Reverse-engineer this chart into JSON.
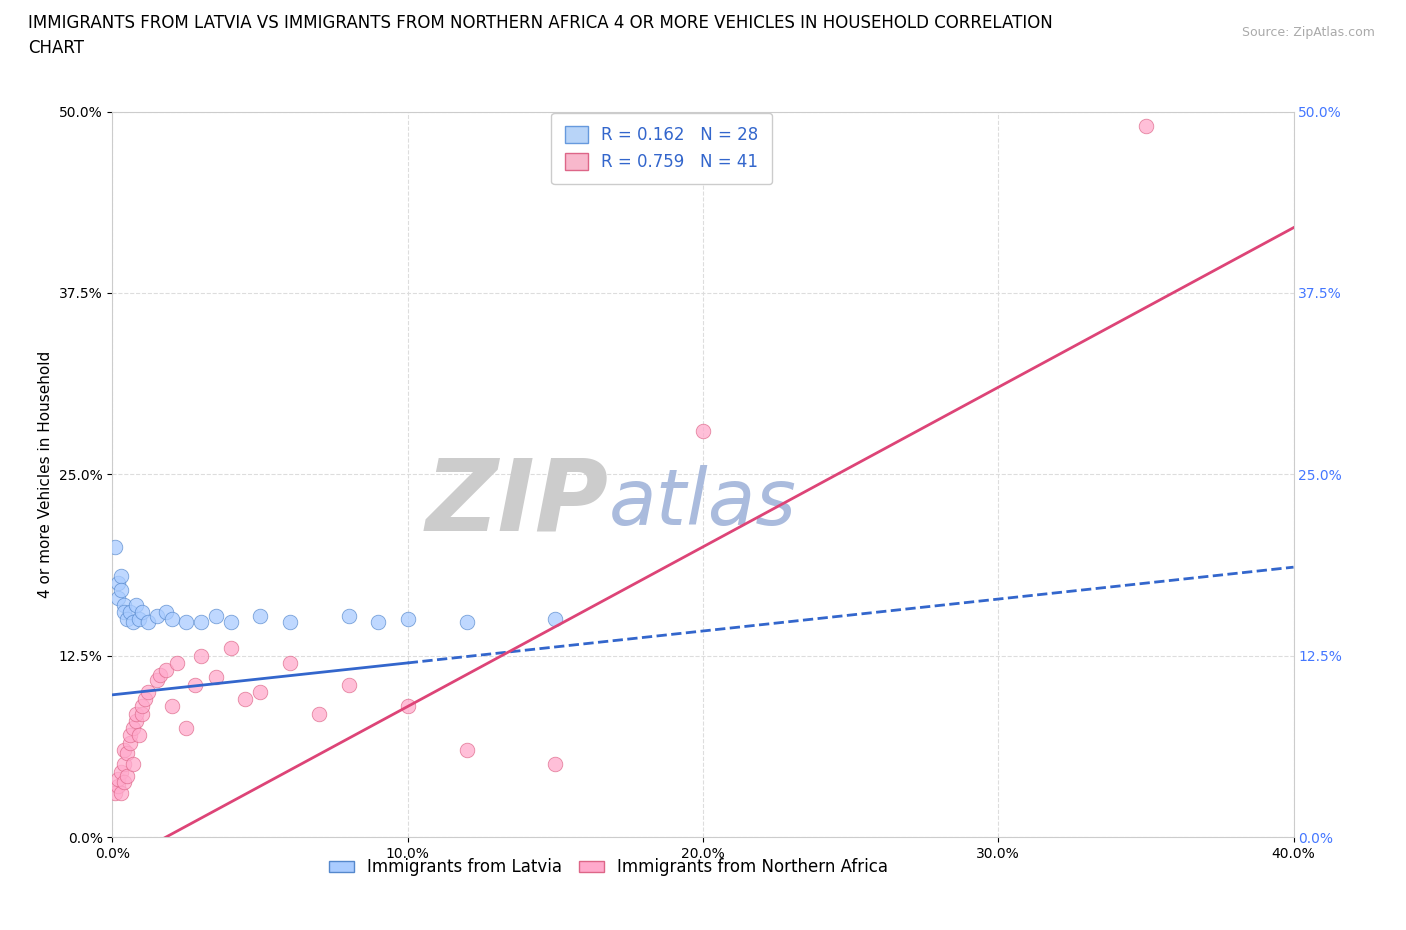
{
  "title_line1": "IMMIGRANTS FROM LATVIA VS IMMIGRANTS FROM NORTHERN AFRICA 4 OR MORE VEHICLES IN HOUSEHOLD CORRELATION",
  "title_line2": "CHART",
  "source": "Source: ZipAtlas.com",
  "ylabel": "4 or more Vehicles in Household",
  "xlim": [
    0.0,
    0.4
  ],
  "ylim": [
    0.0,
    0.5
  ],
  "xticks": [
    0.0,
    0.1,
    0.2,
    0.3,
    0.4
  ],
  "xtick_labels": [
    "0.0%",
    "10.0%",
    "20.0%",
    "30.0%",
    "40.0%"
  ],
  "yticks": [
    0.0,
    0.125,
    0.25,
    0.375,
    0.5
  ],
  "ytick_labels": [
    "0.0%",
    "12.5%",
    "25.0%",
    "37.5%",
    "50.0%"
  ],
  "legend_R_N": [
    {
      "R": "0.162",
      "N": "28",
      "face": "#b8d4f8",
      "edge": "#6699dd"
    },
    {
      "R": "0.759",
      "N": "41",
      "face": "#f8b8cc",
      "edge": "#dd6688"
    }
  ],
  "legend_labels": [
    "Immigrants from Latvia",
    "Immigrants from Northern Africa"
  ],
  "blue_x": [
    0.001,
    0.002,
    0.002,
    0.003,
    0.003,
    0.004,
    0.004,
    0.005,
    0.006,
    0.007,
    0.008,
    0.009,
    0.01,
    0.012,
    0.015,
    0.018,
    0.02,
    0.025,
    0.03,
    0.035,
    0.04,
    0.05,
    0.06,
    0.08,
    0.09,
    0.1,
    0.12,
    0.15
  ],
  "blue_y": [
    0.2,
    0.175,
    0.165,
    0.18,
    0.17,
    0.16,
    0.155,
    0.15,
    0.155,
    0.148,
    0.16,
    0.15,
    0.155,
    0.148,
    0.152,
    0.155,
    0.15,
    0.148,
    0.148,
    0.152,
    0.148,
    0.152,
    0.148,
    0.152,
    0.148,
    0.15,
    0.148,
    0.15
  ],
  "pink_x": [
    0.001,
    0.002,
    0.002,
    0.003,
    0.003,
    0.004,
    0.004,
    0.004,
    0.005,
    0.005,
    0.006,
    0.006,
    0.007,
    0.007,
    0.008,
    0.008,
    0.009,
    0.01,
    0.01,
    0.011,
    0.012,
    0.015,
    0.016,
    0.018,
    0.02,
    0.022,
    0.025,
    0.028,
    0.03,
    0.035,
    0.04,
    0.045,
    0.05,
    0.06,
    0.07,
    0.08,
    0.1,
    0.12,
    0.15,
    0.2,
    0.35
  ],
  "pink_y": [
    0.03,
    0.035,
    0.04,
    0.03,
    0.045,
    0.038,
    0.05,
    0.06,
    0.042,
    0.058,
    0.065,
    0.07,
    0.05,
    0.075,
    0.08,
    0.085,
    0.07,
    0.085,
    0.09,
    0.095,
    0.1,
    0.108,
    0.112,
    0.115,
    0.09,
    0.12,
    0.075,
    0.105,
    0.125,
    0.11,
    0.13,
    0.095,
    0.1,
    0.12,
    0.085,
    0.105,
    0.09,
    0.06,
    0.05,
    0.28,
    0.49
  ],
  "blue_line_color": "#3366cc",
  "pink_line_color": "#dd4477",
  "blue_scatter_color": "#aaccff",
  "blue_scatter_edge": "#5588cc",
  "pink_scatter_color": "#ffaacc",
  "pink_scatter_edge": "#dd6688",
  "right_tick_color": "#4477ff",
  "watermark_zip_color": "#cccccc",
  "watermark_atlas_color": "#aabbdd",
  "grid_color": "#dddddd",
  "background": "#ffffff",
  "title_fontsize": 12,
  "axis_label_fontsize": 11,
  "tick_fontsize": 10,
  "legend_fontsize": 12,
  "blue_line_intercept": 0.098,
  "blue_line_slope_solid": 0.22,
  "blue_line_transition_x": 0.1,
  "pink_line_intercept": -0.02,
  "pink_line_slope": 1.1
}
